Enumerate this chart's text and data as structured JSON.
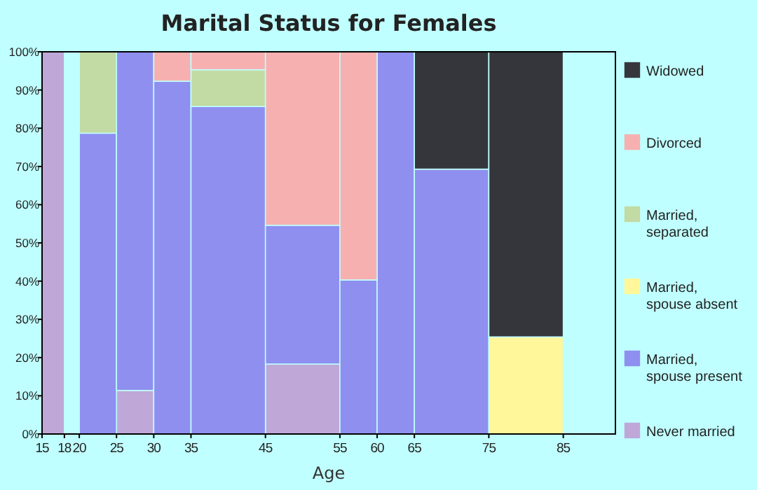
{
  "chart_data": {
    "type": "bar",
    "title": "Marital Status for Females",
    "xlabel": "Age",
    "stacked": true,
    "legend": "right",
    "grid": false,
    "x": [
      16.5,
      19,
      22.5,
      27.5,
      32.5,
      40,
      50,
      57.5,
      62.5,
      70,
      80
    ],
    "xlim": [
      15,
      92
    ],
    "xticks": [
      15,
      18,
      20,
      25,
      30,
      35,
      45,
      55,
      60,
      65,
      75,
      85
    ],
    "ylim": [
      0,
      100
    ],
    "yticks": [
      {
        "value": 0,
        "label": "0%"
      },
      {
        "value": 10,
        "label": "10%"
      },
      {
        "value": 20,
        "label": "20%"
      },
      {
        "value": 30,
        "label": "30%"
      },
      {
        "value": 40,
        "label": "40%"
      },
      {
        "value": 50,
        "label": "50%"
      },
      {
        "value": 60,
        "label": "60%"
      },
      {
        "value": 70,
        "label": "70%"
      },
      {
        "value": 80,
        "label": "80%"
      },
      {
        "value": 90,
        "label": "90%"
      },
      {
        "value": 100,
        "label": "100%"
      }
    ],
    "series": [
      {
        "name": "Never married",
        "color": "#bfa8d8",
        "values": [
          100,
          null,
          null,
          11.4,
          null,
          null,
          18.3,
          null,
          null,
          null,
          null
        ]
      },
      {
        "name": "Married, spouse present",
        "color": "#8f8ff0",
        "values": [
          null,
          null,
          78.7,
          88.6,
          92.3,
          85.7,
          36.3,
          40.3,
          100,
          69.3,
          null
        ]
      },
      {
        "name": "Married, spouse absent",
        "color": "#fff799",
        "values": [
          null,
          null,
          null,
          null,
          null,
          null,
          null,
          null,
          null,
          null,
          25.4
        ]
      },
      {
        "name": "Married, separated",
        "color": "#c2daa3",
        "values": [
          null,
          null,
          21.3,
          null,
          null,
          9.6,
          null,
          null,
          null,
          null,
          null
        ]
      },
      {
        "name": "Divorced",
        "color": "#f7b0b0",
        "values": [
          null,
          null,
          null,
          null,
          7.7,
          4.7,
          45.4,
          59.7,
          null,
          null,
          null
        ]
      },
      {
        "name": "Widowed",
        "color": "#35363b",
        "values": [
          null,
          null,
          null,
          null,
          null,
          null,
          null,
          null,
          null,
          30.7,
          74.6
        ]
      }
    ]
  }
}
